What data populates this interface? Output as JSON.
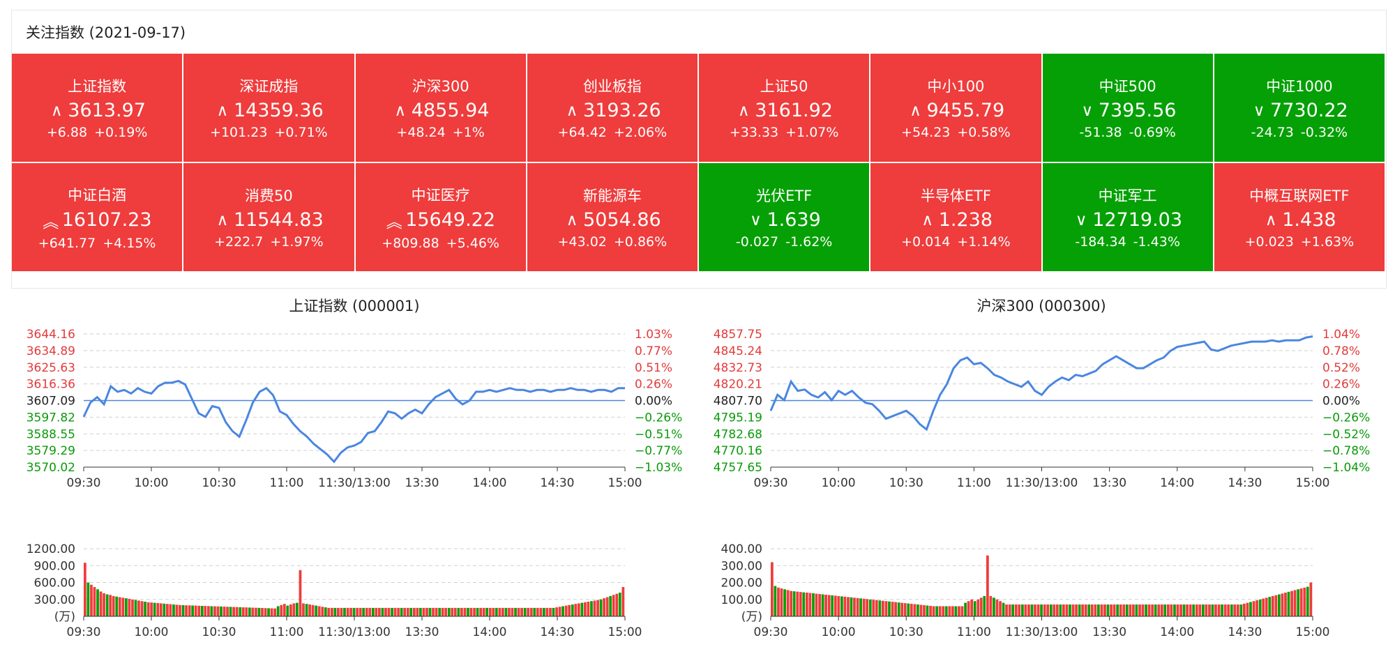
{
  "panel": {
    "title": "关注指数 (2021-09-17)"
  },
  "colors": {
    "up": "#ef3c3c",
    "down": "#05a005",
    "line": "#4a86e0",
    "axis_up": "#e33b3b",
    "axis_down": "#0a9a0a"
  },
  "indices": [
    {
      "name": "上证指数",
      "arrow": "up",
      "price": "3613.97",
      "chg": "+6.88",
      "pct": "+0.19%",
      "direction": "up"
    },
    {
      "name": "深证成指",
      "arrow": "up",
      "price": "14359.36",
      "chg": "+101.23",
      "pct": "+0.71%",
      "direction": "up"
    },
    {
      "name": "沪深300",
      "arrow": "up",
      "price": "4855.94",
      "chg": "+48.24",
      "pct": "+1%",
      "direction": "up"
    },
    {
      "name": "创业板指",
      "arrow": "up",
      "price": "3193.26",
      "chg": "+64.42",
      "pct": "+2.06%",
      "direction": "up"
    },
    {
      "name": "上证50",
      "arrow": "up",
      "price": "3161.92",
      "chg": "+33.33",
      "pct": "+1.07%",
      "direction": "up"
    },
    {
      "name": "中小100",
      "arrow": "up",
      "price": "9455.79",
      "chg": "+54.23",
      "pct": "+0.58%",
      "direction": "up"
    },
    {
      "name": "中证500",
      "arrow": "down",
      "price": "7395.56",
      "chg": "-51.38",
      "pct": "-0.69%",
      "direction": "down"
    },
    {
      "name": "中证1000",
      "arrow": "down",
      "price": "7730.22",
      "chg": "-24.73",
      "pct": "-0.32%",
      "direction": "down"
    },
    {
      "name": "中证白酒",
      "arrow": "double-up",
      "price": "16107.23",
      "chg": "+641.77",
      "pct": "+4.15%",
      "direction": "up"
    },
    {
      "name": "消费50",
      "arrow": "up",
      "price": "11544.83",
      "chg": "+222.7",
      "pct": "+1.97%",
      "direction": "up"
    },
    {
      "name": "中证医疗",
      "arrow": "double-up",
      "price": "15649.22",
      "chg": "+809.88",
      "pct": "+5.46%",
      "direction": "up"
    },
    {
      "name": "新能源车",
      "arrow": "up",
      "price": "5054.86",
      "chg": "+43.02",
      "pct": "+0.86%",
      "direction": "up"
    },
    {
      "name": "光伏ETF",
      "arrow": "down",
      "price": "1.639",
      "chg": "-0.027",
      "pct": "-1.62%",
      "direction": "down"
    },
    {
      "name": "半导体ETF",
      "arrow": "up",
      "price": "1.238",
      "chg": "+0.014",
      "pct": "+1.14%",
      "direction": "up"
    },
    {
      "name": "中证军工",
      "arrow": "down",
      "price": "12719.03",
      "chg": "-184.34",
      "pct": "-1.43%",
      "direction": "down"
    },
    {
      "name": "中概互联网ETF",
      "arrow": "up",
      "price": "1.438",
      "chg": "+0.023",
      "pct": "+1.63%",
      "direction": "up"
    }
  ],
  "chart_data": [
    {
      "type": "line",
      "title": "上证指数 (000001)",
      "x_ticks": [
        "09:30",
        "10:00",
        "10:30",
        "11:00",
        "11:30/13:00",
        "13:30",
        "14:00",
        "14:30",
        "15:00"
      ],
      "ylim": [
        3570.02,
        3644.16
      ],
      "base": 3607.09,
      "y_ticks_left": [
        "3644.16",
        "3634.89",
        "3625.63",
        "3616.36",
        "3607.09",
        "3597.82",
        "3588.55",
        "3579.29",
        "3570.02"
      ],
      "y_ticks_right": [
        "1.03%",
        "0.77%",
        "0.51%",
        "0.26%",
        "0.00%",
        "−0.26%",
        "−0.51%",
        "−0.77%",
        "−1.03%"
      ],
      "series": [
        {
          "x": [
            0,
            3,
            6,
            9,
            12,
            15,
            18,
            21,
            24,
            27,
            30,
            33,
            36,
            39,
            42,
            45,
            48,
            51,
            54,
            57,
            60,
            63,
            66,
            69,
            72,
            75,
            78,
            81,
            84,
            87,
            90,
            93,
            96,
            99,
            102,
            105,
            108,
            111,
            114,
            117,
            120,
            123,
            126,
            129,
            132,
            135,
            138,
            141,
            144,
            147,
            150,
            153,
            156,
            159,
            162,
            165,
            168,
            171,
            174,
            177,
            180,
            183,
            186,
            189,
            192,
            195,
            198,
            201,
            204,
            207,
            210,
            213,
            216,
            219,
            222,
            225,
            228,
            231,
            234,
            237,
            240
          ],
          "values": [
            3598,
            3606,
            3609,
            3605,
            3615,
            3612,
            3613,
            3611,
            3614,
            3612,
            3611,
            3615,
            3617,
            3617,
            3618,
            3616,
            3608,
            3600,
            3598,
            3604,
            3603,
            3595,
            3590,
            3587,
            3596,
            3606,
            3612,
            3614,
            3610,
            3601,
            3599,
            3594,
            3590,
            3587,
            3583,
            3580,
            3577,
            3573,
            3578,
            3581,
            3582,
            3584,
            3589,
            3590,
            3595,
            3601,
            3600,
            3597,
            3600,
            3602,
            3600,
            3605,
            3609,
            3611,
            3613,
            3608,
            3605,
            3607,
            3612,
            3612,
            3613,
            3612,
            3613,
            3614,
            3613,
            3613,
            3612,
            3613,
            3613,
            3612,
            3613,
            3613,
            3614,
            3613,
            3613,
            3612,
            3613,
            3613,
            3612,
            3614,
            3613.97
          ]
        }
      ]
    },
    {
      "type": "bar",
      "title": "",
      "ylabel": "(万)",
      "x_ticks": [
        "09:30",
        "10:00",
        "10:30",
        "11:00",
        "11:30/13:00",
        "13:30",
        "14:00",
        "14:30",
        "15:00"
      ],
      "ylim": [
        0,
        1200
      ],
      "y_ticks": [
        "1200.00",
        "900.00",
        "600.00",
        "300.00"
      ],
      "values": [
        950,
        600,
        560,
        520,
        480,
        440,
        410,
        390,
        380,
        360,
        350,
        340,
        330,
        320,
        310,
        300,
        290,
        280,
        270,
        260,
        250,
        245,
        240,
        235,
        230,
        225,
        220,
        215,
        210,
        205,
        200,
        198,
        196,
        194,
        192,
        190,
        188,
        186,
        184,
        182,
        180,
        178,
        176,
        174,
        172,
        170,
        168,
        166,
        164,
        162,
        160,
        158,
        156,
        154,
        152,
        150,
        148,
        146,
        144,
        142,
        140,
        180,
        200,
        220,
        190,
        210,
        230,
        240,
        820,
        230,
        220,
        210,
        200,
        190,
        180,
        170,
        160,
        150,
        150,
        150,
        150,
        150,
        150,
        150,
        150,
        150,
        150,
        150,
        150,
        150,
        150,
        150,
        150,
        150,
        150,
        150,
        150,
        150,
        150,
        150,
        150,
        150,
        150,
        150,
        150,
        150,
        150,
        150,
        150,
        150,
        150,
        150,
        150,
        150,
        150,
        150,
        150,
        150,
        150,
        150,
        150,
        150,
        150,
        150,
        150,
        150,
        150,
        150,
        150,
        150,
        150,
        150,
        150,
        150,
        150,
        150,
        150,
        150,
        150,
        150,
        150,
        150,
        150,
        150,
        150,
        150,
        150,
        150,
        150,
        160,
        170,
        180,
        190,
        200,
        210,
        220,
        230,
        240,
        250,
        260,
        270,
        280,
        290,
        300,
        320,
        340,
        360,
        380,
        400,
        420,
        520
      ]
    },
    {
      "type": "line",
      "title": "沪深300 (000300)",
      "x_ticks": [
        "09:30",
        "10:00",
        "10:30",
        "11:00",
        "11:30/13:00",
        "13:30",
        "14:00",
        "14:30",
        "15:00"
      ],
      "ylim": [
        4757.65,
        4857.75
      ],
      "base": 4807.7,
      "y_ticks_left": [
        "4857.75",
        "4845.24",
        "4832.73",
        "4820.21",
        "4807.70",
        "4795.19",
        "4782.68",
        "4770.16",
        "4757.65"
      ],
      "y_ticks_right": [
        "1.04%",
        "0.78%",
        "0.52%",
        "0.26%",
        "0.00%",
        "−0.26%",
        "−0.52%",
        "−0.78%",
        "−1.04%"
      ],
      "series": [
        {
          "x": [
            0,
            3,
            6,
            9,
            12,
            15,
            18,
            21,
            24,
            27,
            30,
            33,
            36,
            39,
            42,
            45,
            48,
            51,
            54,
            57,
            60,
            63,
            66,
            69,
            72,
            75,
            78,
            81,
            84,
            87,
            90,
            93,
            96,
            99,
            102,
            105,
            108,
            111,
            114,
            117,
            120,
            123,
            126,
            129,
            132,
            135,
            138,
            141,
            144,
            147,
            150,
            153,
            156,
            159,
            162,
            165,
            168,
            171,
            174,
            177,
            180,
            183,
            186,
            189,
            192,
            195,
            198,
            201,
            204,
            207,
            210,
            213,
            216,
            219,
            222,
            225,
            228,
            231,
            234,
            237,
            240
          ],
          "values": [
            4800,
            4812,
            4808,
            4822,
            4815,
            4816,
            4812,
            4810,
            4814,
            4808,
            4815,
            4812,
            4815,
            4810,
            4806,
            4805,
            4800,
            4794,
            4796,
            4798,
            4800,
            4796,
            4790,
            4786,
            4800,
            4812,
            4820,
            4832,
            4838,
            4840,
            4835,
            4836,
            4832,
            4827,
            4825,
            4822,
            4820,
            4818,
            4822,
            4815,
            4812,
            4818,
            4822,
            4825,
            4823,
            4827,
            4826,
            4828,
            4830,
            4835,
            4838,
            4841,
            4838,
            4835,
            4832,
            4832,
            4835,
            4838,
            4840,
            4845,
            4848,
            4849,
            4850,
            4851,
            4852,
            4846,
            4845,
            4847,
            4849,
            4850,
            4851,
            4852,
            4852,
            4852,
            4853,
            4852,
            4853,
            4853,
            4853,
            4855,
            4855.94
          ]
        }
      ]
    },
    {
      "type": "bar",
      "title": "",
      "ylabel": "(万)",
      "x_ticks": [
        "09:30",
        "10:00",
        "10:30",
        "11:00",
        "11:30/13:00",
        "13:30",
        "14:00",
        "14:30",
        "15:00"
      ],
      "ylim": [
        0,
        400
      ],
      "y_ticks": [
        "400.00",
        "300.00",
        "200.00",
        "100.00"
      ],
      "values": [
        320,
        180,
        170,
        165,
        160,
        155,
        150,
        148,
        146,
        144,
        142,
        140,
        138,
        136,
        134,
        132,
        130,
        128,
        126,
        124,
        122,
        120,
        118,
        116,
        114,
        112,
        110,
        108,
        106,
        104,
        102,
        100,
        98,
        96,
        94,
        92,
        90,
        88,
        86,
        84,
        82,
        80,
        78,
        76,
        74,
        72,
        70,
        68,
        66,
        64,
        62,
        60,
        60,
        60,
        60,
        60,
        60,
        60,
        60,
        60,
        60,
        80,
        90,
        100,
        90,
        100,
        110,
        120,
        360,
        120,
        110,
        100,
        90,
        80,
        70,
        70,
        70,
        70,
        70,
        70,
        70,
        70,
        70,
        70,
        70,
        70,
        70,
        70,
        70,
        70,
        70,
        70,
        70,
        70,
        70,
        70,
        70,
        70,
        70,
        70,
        70,
        70,
        70,
        70,
        70,
        70,
        70,
        70,
        70,
        70,
        70,
        70,
        70,
        70,
        70,
        70,
        70,
        70,
        70,
        70,
        70,
        70,
        70,
        70,
        70,
        70,
        70,
        70,
        70,
        70,
        70,
        70,
        70,
        70,
        70,
        70,
        70,
        70,
        70,
        70,
        70,
        70,
        70,
        70,
        70,
        70,
        70,
        70,
        70,
        75,
        80,
        85,
        90,
        95,
        100,
        105,
        110,
        115,
        120,
        125,
        130,
        135,
        140,
        145,
        150,
        155,
        160,
        165,
        170,
        175,
        200
      ]
    }
  ]
}
